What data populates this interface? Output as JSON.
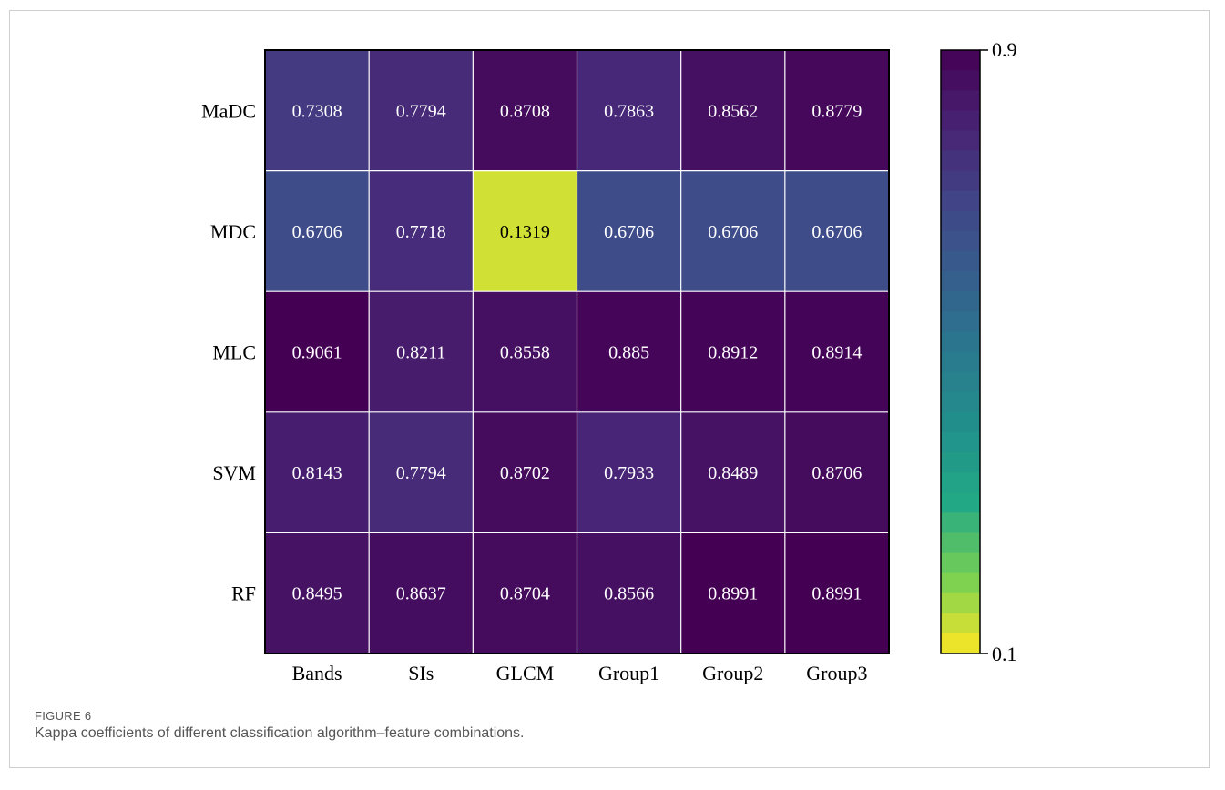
{
  "caption": {
    "label": "FIGURE 6",
    "text": "Kappa coefficients of different classification algorithm–feature combinations."
  },
  "chart_data": {
    "type": "heatmap",
    "title": "",
    "xlabel": "",
    "ylabel": "",
    "x": [
      "Bands",
      "SIs",
      "GLCM",
      "Group1",
      "Group2",
      "Group3"
    ],
    "y": [
      "MaDC",
      "MDC",
      "MLC",
      "SVM",
      "RF"
    ],
    "values": [
      [
        0.7308,
        0.7794,
        0.8708,
        0.7863,
        0.8562,
        0.8779
      ],
      [
        0.6706,
        0.7718,
        0.1319,
        0.6706,
        0.6706,
        0.6706
      ],
      [
        0.9061,
        0.8211,
        0.8558,
        0.885,
        0.8912,
        0.8914
      ],
      [
        0.8143,
        0.7794,
        0.8702,
        0.7933,
        0.8489,
        0.8706
      ],
      [
        0.8495,
        0.8637,
        0.8704,
        0.8566,
        0.8991,
        0.8991
      ]
    ],
    "value_labels": [
      [
        "0.7308",
        "0.7794",
        "0.8708",
        "0.7863",
        "0.8562",
        "0.8779"
      ],
      [
        "0.6706",
        "0.7718",
        "0.1319",
        "0.6706",
        "0.6706",
        "0.6706"
      ],
      [
        "0.9061",
        "0.8211",
        "0.8558",
        "0.885",
        "0.8912",
        "0.8914"
      ],
      [
        "0.8143",
        "0.7794",
        "0.8702",
        "0.7933",
        "0.8489",
        "0.8706"
      ],
      [
        "0.8495",
        "0.8637",
        "0.8704",
        "0.8566",
        "0.8991",
        "0.8991"
      ]
    ],
    "colorbar": {
      "min": 0.1,
      "max": 0.9,
      "min_label": "0.1",
      "max_label": "0.9",
      "colormap": "viridis",
      "reversed": true,
      "steps": 30
    },
    "grid": true
  }
}
